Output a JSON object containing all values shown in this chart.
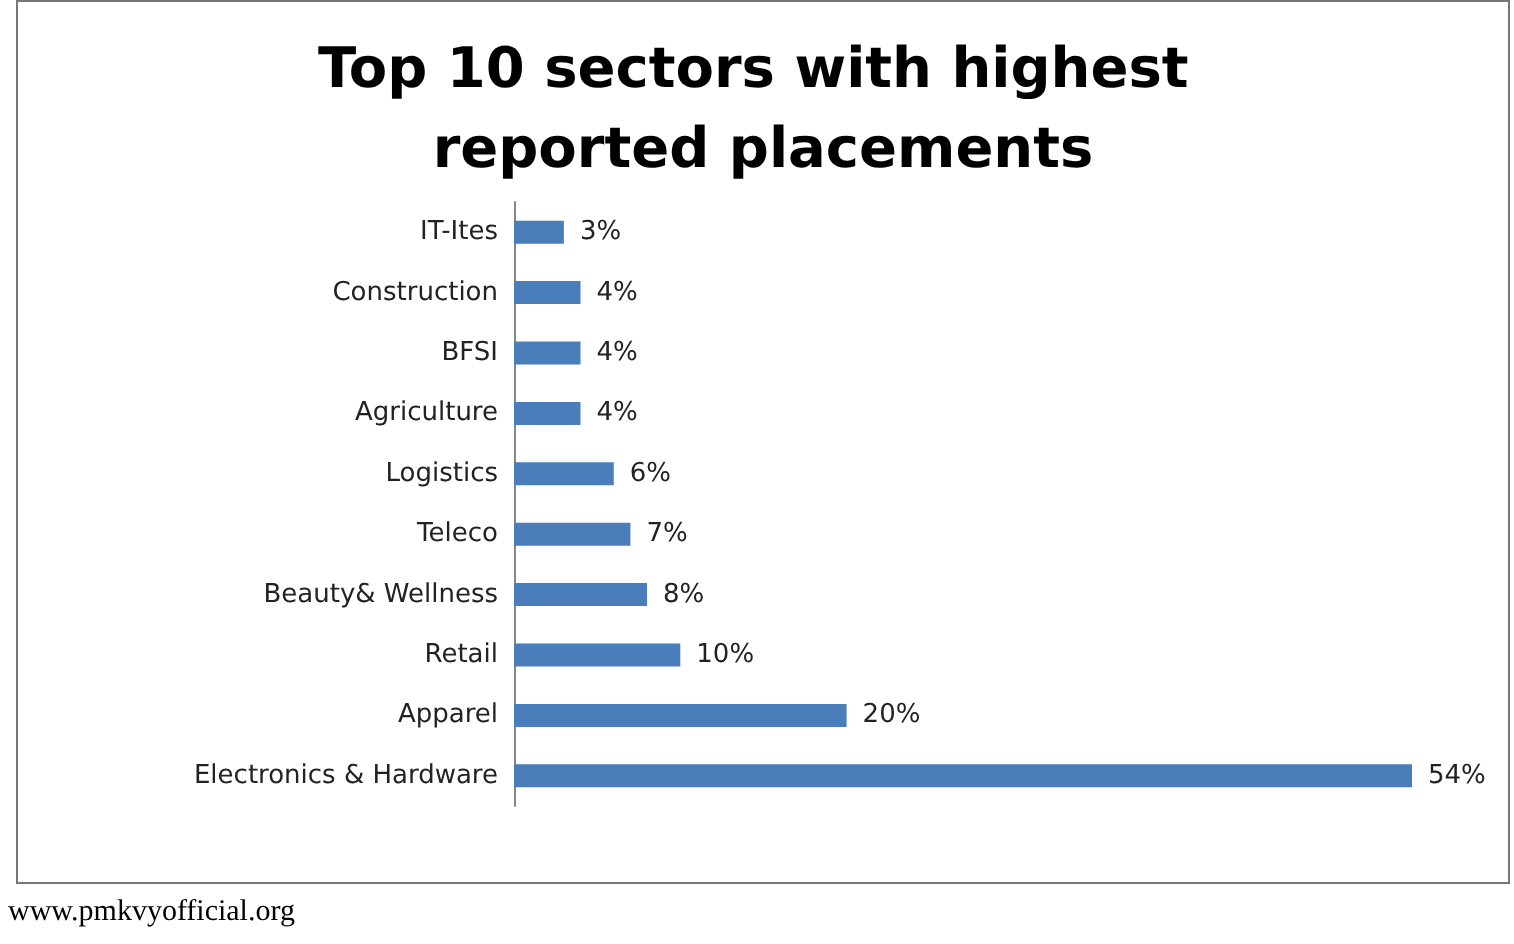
{
  "chart_data": {
    "type": "bar",
    "orientation": "horizontal",
    "title": "Top 10 sectors with highest reported placements",
    "categories": [
      "IT-Ites",
      "Construction",
      "BFSI",
      "Agriculture",
      "Logistics",
      "Teleco",
      "Beauty& Wellness",
      "Retail",
      "Apparel",
      "Electronics & Hardware"
    ],
    "values": [
      3,
      4,
      4,
      4,
      6,
      7,
      8,
      10,
      20,
      54
    ],
    "value_labels": [
      "3%",
      "4%",
      "4%",
      "4%",
      "6%",
      "7%",
      "8%",
      "10%",
      "20%",
      "54%"
    ],
    "color": "#4a7ebb",
    "grid": false,
    "annotations": [
      "www.pmkvyofficial.org"
    ]
  }
}
